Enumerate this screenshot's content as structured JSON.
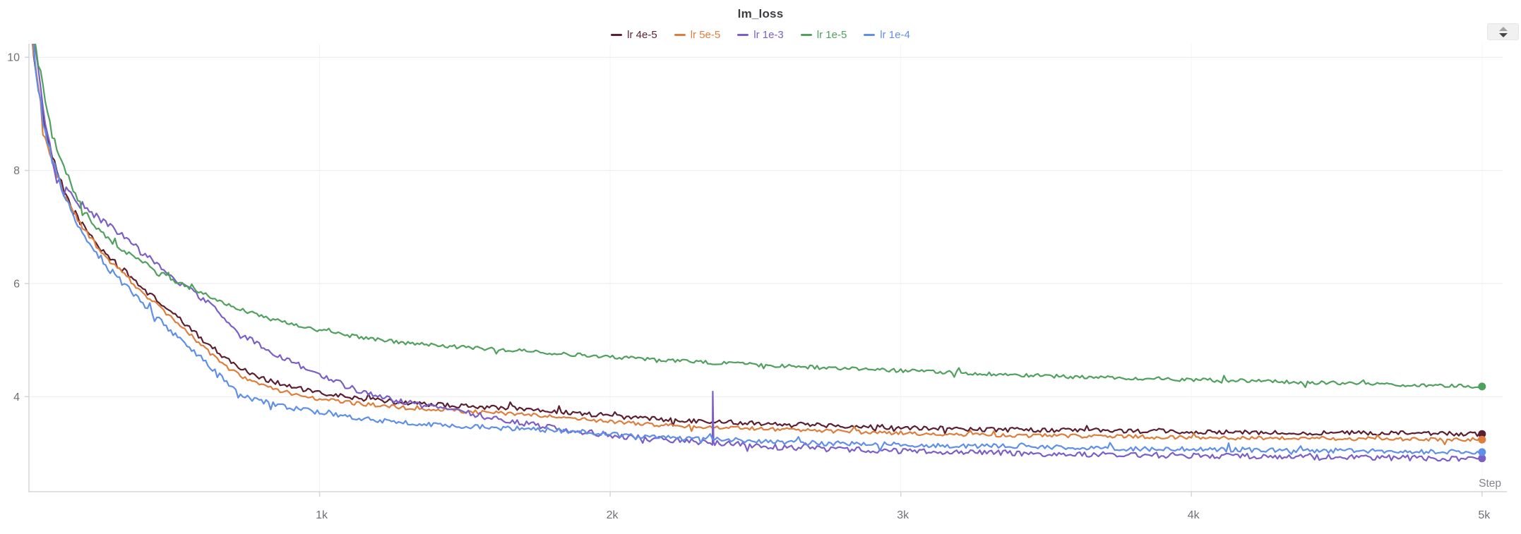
{
  "header": {
    "title": "lm_loss",
    "toggle_icon": "up-down-triangles"
  },
  "legend": {
    "items": [
      {
        "label": "lr 4e-5",
        "color": "#5b1f31"
      },
      {
        "label": "lr 5e-5",
        "color": "#de7e3d"
      },
      {
        "label": "lr 1e-3",
        "color": "#7b5fc8"
      },
      {
        "label": "lr 1e-5",
        "color": "#50a05e"
      },
      {
        "label": "lr 1e-4",
        "color": "#5f8fe8"
      }
    ]
  },
  "axes": {
    "x_label": "Step",
    "x_ticks": [
      {
        "label": "1k",
        "value": 1000
      },
      {
        "label": "2k",
        "value": 2000
      },
      {
        "label": "3k",
        "value": 3000
      },
      {
        "label": "4k",
        "value": 4000
      },
      {
        "label": "5k",
        "value": 5000
      }
    ],
    "y_ticks": [
      {
        "label": "10",
        "value": 10
      },
      {
        "label": "8",
        "value": 8
      },
      {
        "label": "6",
        "value": 6
      },
      {
        "label": "4",
        "value": 4
      }
    ],
    "grid": true,
    "tick_color": "#6f6f78",
    "x_label_color": "#83838b",
    "grid_color": "#ebebee",
    "v_grid_color": "#f4f4f6",
    "axis_color": "#d6d6da"
  },
  "chart_data": {
    "type": "line",
    "title": "lm_loss",
    "xlabel": "Step",
    "ylabel": "",
    "xlim": [
      0,
      5071
    ],
    "ylim": [
      2.32,
      10.24
    ],
    "legend_position": "top-center",
    "series": [
      {
        "name": "lr 4e-5",
        "color": "#5b1f31",
        "noise": 0.04,
        "end_value": 3.34,
        "anchors": [
          [
            0,
            10.6
          ],
          [
            15,
            10.2
          ],
          [
            30,
            9.55
          ],
          [
            50,
            8.9
          ],
          [
            70,
            8.4
          ],
          [
            100,
            7.9
          ],
          [
            150,
            7.3
          ],
          [
            200,
            6.92
          ],
          [
            250,
            6.6
          ],
          [
            315,
            6.28
          ],
          [
            400,
            5.88
          ],
          [
            500,
            5.45
          ],
          [
            600,
            5.0
          ],
          [
            660,
            4.75
          ],
          [
            728,
            4.5
          ],
          [
            800,
            4.33
          ],
          [
            900,
            4.18
          ],
          [
            1000,
            4.06
          ],
          [
            1150,
            3.96
          ],
          [
            1300,
            3.89
          ],
          [
            1500,
            3.83
          ],
          [
            1700,
            3.79
          ],
          [
            1900,
            3.7
          ],
          [
            2100,
            3.62
          ],
          [
            2350,
            3.56
          ],
          [
            2600,
            3.52
          ],
          [
            2900,
            3.47
          ],
          [
            3300,
            3.42
          ],
          [
            3700,
            3.4
          ],
          [
            4100,
            3.37
          ],
          [
            4500,
            3.36
          ],
          [
            5000,
            3.34
          ]
        ]
      },
      {
        "name": "lr 5e-5",
        "color": "#de7e3d",
        "noise": 0.034,
        "end_value": 3.24,
        "anchors": [
          [
            0,
            10.6
          ],
          [
            15,
            10.15
          ],
          [
            30,
            9.45
          ],
          [
            50,
            8.8
          ],
          [
            70,
            8.32
          ],
          [
            100,
            7.85
          ],
          [
            150,
            7.26
          ],
          [
            200,
            6.88
          ],
          [
            250,
            6.55
          ],
          [
            315,
            6.22
          ],
          [
            400,
            5.8
          ],
          [
            500,
            5.35
          ],
          [
            600,
            4.88
          ],
          [
            660,
            4.6
          ],
          [
            728,
            4.36
          ],
          [
            800,
            4.2
          ],
          [
            900,
            4.06
          ],
          [
            1000,
            3.96
          ],
          [
            1150,
            3.87
          ],
          [
            1300,
            3.8
          ],
          [
            1500,
            3.74
          ],
          [
            1700,
            3.69
          ],
          [
            1900,
            3.6
          ],
          [
            2100,
            3.52
          ],
          [
            2350,
            3.46
          ],
          [
            2600,
            3.42
          ],
          [
            2900,
            3.37
          ],
          [
            3300,
            3.32
          ],
          [
            3700,
            3.3
          ],
          [
            4100,
            3.27
          ],
          [
            4500,
            3.26
          ],
          [
            5000,
            3.24
          ]
        ]
      },
      {
        "name": "lr 1e-3",
        "color": "#7b5fc8",
        "noise": 0.05,
        "end_value": 2.91,
        "spike": {
          "step": 2353,
          "value": 4.09
        },
        "anchors": [
          [
            0,
            10.6
          ],
          [
            15,
            10.3
          ],
          [
            35,
            9.6
          ],
          [
            60,
            8.7
          ],
          [
            85,
            8.0
          ],
          [
            110,
            7.7
          ],
          [
            140,
            7.55
          ],
          [
            170,
            7.45
          ],
          [
            200,
            7.32
          ],
          [
            250,
            7.12
          ],
          [
            300,
            6.92
          ],
          [
            350,
            6.72
          ],
          [
            400,
            6.5
          ],
          [
            450,
            6.3
          ],
          [
            500,
            6.1
          ],
          [
            550,
            5.9
          ],
          [
            600,
            5.72
          ],
          [
            650,
            5.52
          ],
          [
            690,
            5.32
          ],
          [
            728,
            5.11
          ],
          [
            780,
            4.95
          ],
          [
            850,
            4.75
          ],
          [
            950,
            4.5
          ],
          [
            1050,
            4.28
          ],
          [
            1133,
            4.1
          ],
          [
            1200,
            4.0
          ],
          [
            1300,
            3.9
          ],
          [
            1400,
            3.8
          ],
          [
            1500,
            3.72
          ],
          [
            1600,
            3.62
          ],
          [
            1700,
            3.53
          ],
          [
            1850,
            3.42
          ],
          [
            2000,
            3.32
          ],
          [
            2150,
            3.25
          ],
          [
            2350,
            3.19
          ],
          [
            2600,
            3.1
          ],
          [
            2900,
            3.05
          ],
          [
            3200,
            3.02
          ],
          [
            3600,
            2.98
          ],
          [
            4000,
            2.96
          ],
          [
            4400,
            2.93
          ],
          [
            5000,
            2.91
          ]
        ]
      },
      {
        "name": "lr 1e-5",
        "color": "#50a05e",
        "noise": 0.032,
        "end_value": 4.18,
        "anchors": [
          [
            0,
            10.6
          ],
          [
            20,
            10.3
          ],
          [
            40,
            9.7
          ],
          [
            60,
            9.1
          ],
          [
            80,
            8.6
          ],
          [
            100,
            8.35
          ],
          [
            140,
            7.8
          ],
          [
            170,
            7.45
          ],
          [
            200,
            7.2
          ],
          [
            250,
            6.9
          ],
          [
            300,
            6.67
          ],
          [
            350,
            6.5
          ],
          [
            400,
            6.35
          ],
          [
            450,
            6.2
          ],
          [
            500,
            6.05
          ],
          [
            550,
            5.93
          ],
          [
            600,
            5.82
          ],
          [
            650,
            5.7
          ],
          [
            728,
            5.55
          ],
          [
            800,
            5.42
          ],
          [
            900,
            5.28
          ],
          [
            1000,
            5.17
          ],
          [
            1100,
            5.08
          ],
          [
            1300,
            4.95
          ],
          [
            1500,
            4.87
          ],
          [
            1700,
            4.81
          ],
          [
            2000,
            4.7
          ],
          [
            2350,
            4.6
          ],
          [
            2700,
            4.52
          ],
          [
            3000,
            4.46
          ],
          [
            3300,
            4.4
          ],
          [
            3600,
            4.35
          ],
          [
            3900,
            4.31
          ],
          [
            4200,
            4.28
          ],
          [
            4500,
            4.24
          ],
          [
            4800,
            4.2
          ],
          [
            5000,
            4.18
          ]
        ]
      },
      {
        "name": "lr 1e-4",
        "color": "#5f8fe8",
        "noise": 0.042,
        "end_value": 3.02,
        "anchors": [
          [
            0,
            10.6
          ],
          [
            15,
            10.2
          ],
          [
            30,
            9.5
          ],
          [
            50,
            8.85
          ],
          [
            70,
            8.35
          ],
          [
            100,
            7.88
          ],
          [
            150,
            7.2
          ],
          [
            200,
            6.75
          ],
          [
            250,
            6.4
          ],
          [
            315,
            6.05
          ],
          [
            400,
            5.6
          ],
          [
            500,
            5.1
          ],
          [
            600,
            4.65
          ],
          [
            660,
            4.35
          ],
          [
            728,
            4.02
          ],
          [
            800,
            3.92
          ],
          [
            900,
            3.8
          ],
          [
            1000,
            3.72
          ],
          [
            1200,
            3.58
          ],
          [
            1400,
            3.5
          ],
          [
            1600,
            3.45
          ],
          [
            1700,
            3.43
          ],
          [
            1900,
            3.38
          ],
          [
            2100,
            3.3
          ],
          [
            2350,
            3.25
          ],
          [
            2700,
            3.18
          ],
          [
            3000,
            3.15
          ],
          [
            3400,
            3.12
          ],
          [
            3800,
            3.08
          ],
          [
            4200,
            3.06
          ],
          [
            4600,
            3.04
          ],
          [
            5000,
            3.02
          ]
        ]
      }
    ]
  }
}
